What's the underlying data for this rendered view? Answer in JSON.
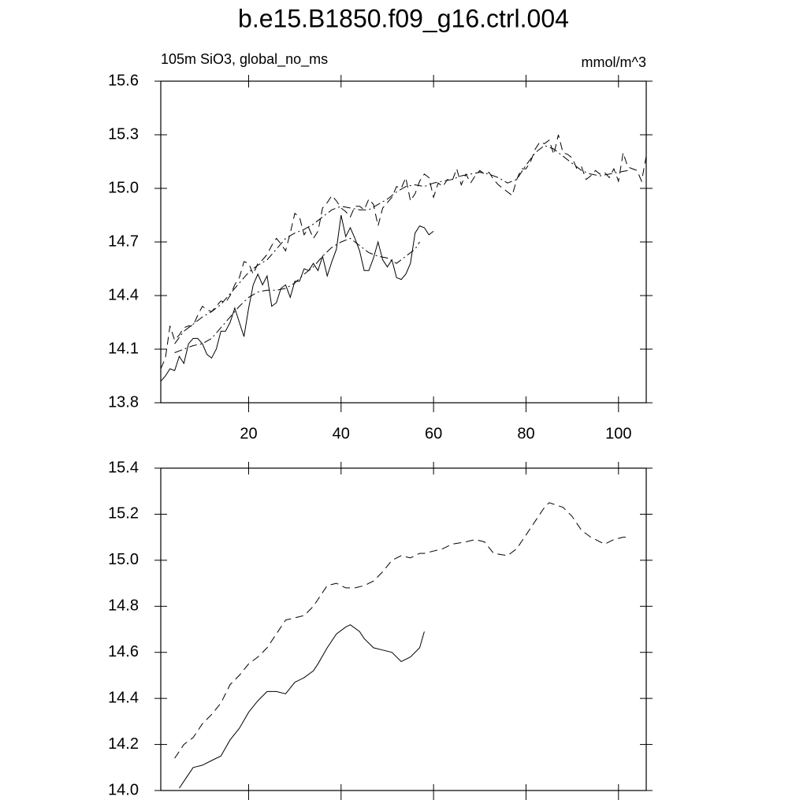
{
  "chart_data": [
    {
      "type": "line",
      "title": "b.e15.B1850.f09_g16.ctrl.004",
      "subtitle": "105m SiO3, global_no_ms",
      "units": "mmol/m^3",
      "xlim": [
        1,
        106
      ],
      "xticks": [
        20,
        40,
        60,
        80,
        100
      ],
      "ylim": [
        13.8,
        15.6
      ],
      "yticks": [
        15.6,
        15.3,
        {
          "value": 15,
          "label": "15.0"
        },
        14.7,
        14.4,
        14.1,
        13.8
      ],
      "series": [
        {
          "color": "#000000",
          "dash": "solid",
          "x": [
            1,
            2,
            3,
            4,
            5,
            6,
            7,
            8,
            9,
            10,
            11,
            12,
            13,
            14,
            15,
            16,
            17,
            18,
            19,
            20,
            21,
            22,
            23,
            24,
            25,
            26,
            27,
            28,
            29,
            30,
            31,
            32,
            33,
            34,
            35,
            36,
            37,
            38,
            39,
            40,
            41,
            42,
            43,
            44,
            45,
            46,
            47,
            48,
            49,
            50,
            51,
            52,
            53,
            54,
            55,
            56,
            57,
            58,
            59,
            60
          ],
          "values": [
            13.92,
            13.95,
            13.99,
            13.98,
            14.06,
            14.02,
            14.13,
            14.16,
            14.16,
            14.13,
            14.07,
            14.05,
            14.1,
            14.2,
            14.2,
            14.25,
            14.33,
            14.25,
            14.17,
            14.33,
            14.46,
            14.52,
            14.46,
            14.51,
            14.34,
            14.36,
            14.44,
            14.46,
            14.39,
            14.48,
            14.48,
            14.55,
            14.54,
            14.58,
            14.54,
            14.62,
            14.51,
            14.59,
            14.66,
            14.85,
            14.73,
            14.78,
            14.72,
            14.65,
            14.54,
            14.54,
            14.61,
            14.7,
            14.6,
            14.56,
            14.6,
            14.5,
            14.49,
            14.52,
            14.58,
            14.75,
            14.79,
            14.78,
            14.74,
            14.76
          ]
        },
        {
          "color": "#000000",
          "dash": "dashdot",
          "x": [
            4,
            6,
            8,
            10,
            12,
            14,
            16,
            18,
            20,
            22,
            24,
            26,
            28,
            30,
            32,
            34,
            36,
            38,
            40,
            42,
            44,
            46,
            48,
            50,
            52,
            54,
            56,
            57
          ],
          "values": [
            14.08,
            14.1,
            14.12,
            14.13,
            14.16,
            14.22,
            14.28,
            14.34,
            14.39,
            14.42,
            14.43,
            14.43,
            14.44,
            14.47,
            14.52,
            14.56,
            14.62,
            14.67,
            14.7,
            14.72,
            14.68,
            14.64,
            14.62,
            14.61,
            14.58,
            14.62,
            14.66,
            14.7
          ]
        },
        {
          "color": "#000000",
          "dash": "dashed",
          "x": [
            1,
            2,
            3,
            4,
            5,
            6,
            7,
            8,
            9,
            10,
            11,
            12,
            13,
            14,
            15,
            16,
            17,
            18,
            19,
            20,
            21,
            22,
            23,
            24,
            25,
            26,
            27,
            28,
            29,
            30,
            31,
            32,
            33,
            34,
            35,
            36,
            37,
            38,
            39,
            40,
            41,
            42,
            43,
            44,
            45,
            46,
            47,
            48,
            49,
            50,
            51,
            52,
            53,
            54,
            55,
            56,
            57,
            58,
            59,
            60,
            61,
            62,
            63,
            64,
            65,
            66,
            67,
            68,
            69,
            70,
            71,
            72,
            73,
            74,
            75,
            76,
            77,
            78,
            79,
            80,
            81,
            82,
            83,
            84,
            85,
            86,
            87,
            88,
            89,
            90,
            91,
            92,
            93,
            94,
            95,
            96,
            97,
            98,
            99,
            100,
            101,
            102,
            103,
            104,
            105,
            106
          ],
          "values": [
            13.99,
            14.05,
            14.23,
            14.15,
            14.18,
            14.22,
            14.23,
            14.23,
            14.29,
            14.34,
            14.32,
            14.31,
            14.34,
            14.37,
            14.36,
            14.4,
            14.46,
            14.5,
            14.59,
            14.58,
            14.52,
            14.58,
            14.6,
            14.63,
            14.68,
            14.72,
            14.69,
            14.65,
            14.75,
            14.86,
            14.84,
            14.74,
            14.78,
            14.72,
            14.76,
            14.89,
            14.92,
            14.96,
            14.93,
            14.89,
            14.87,
            14.84,
            14.9,
            14.9,
            14.88,
            14.94,
            14.91,
            14.79,
            14.89,
            14.92,
            14.95,
            15.01,
            15.0,
            15.06,
            14.93,
            14.97,
            15.04,
            15.08,
            15.06,
            14.95,
            15.03,
            15.01,
            15.05,
            15.04,
            15.11,
            15.02,
            15.08,
            15.03,
            15.07,
            15.1,
            15.08,
            15.09,
            15.05,
            15.02,
            15.0,
            14.98,
            14.96,
            15.05,
            15.11,
            15.11,
            15.15,
            15.22,
            15.26,
            15.25,
            15.27,
            15.19,
            15.3,
            15.2,
            15.19,
            15.17,
            15.11,
            15.12,
            15.05,
            15.07,
            15.1,
            15.08,
            15.09,
            15.06,
            15.11,
            15.04,
            15.2,
            15.12,
            15.11,
            15.1,
            15.04,
            15.18
          ]
        },
        {
          "color": "#000000",
          "dash": "dashdot",
          "x": [
            4,
            6,
            8,
            10,
            12,
            14,
            16,
            18,
            20,
            22,
            24,
            26,
            28,
            30,
            32,
            34,
            36,
            38,
            40,
            42,
            44,
            46,
            48,
            50,
            52,
            54,
            56,
            58,
            60,
            62,
            64,
            66,
            68,
            70,
            72,
            74,
            76,
            78,
            80,
            82,
            84,
            86,
            88,
            90,
            92,
            94,
            96,
            98,
            100,
            102
          ],
          "values": [
            14.13,
            14.2,
            14.24,
            14.28,
            14.31,
            14.35,
            14.41,
            14.47,
            14.53,
            14.57,
            14.6,
            14.66,
            14.72,
            14.75,
            14.77,
            14.8,
            14.84,
            14.88,
            14.9,
            14.89,
            14.88,
            14.88,
            14.91,
            14.94,
            14.98,
            15.01,
            15.02,
            15.01,
            15.03,
            15.04,
            15.05,
            15.07,
            15.08,
            15.09,
            15.08,
            15.06,
            15.03,
            15.05,
            15.13,
            15.2,
            15.24,
            15.22,
            15.18,
            15.14,
            15.1,
            15.08,
            15.07,
            15.08,
            15.09,
            15.1
          ]
        }
      ]
    },
    {
      "type": "line",
      "xlim": [
        1,
        106
      ],
      "xticks": [
        20,
        40,
        60,
        80,
        100
      ],
      "ylim": [
        14.0,
        15.4
      ],
      "yticks": [
        15.4,
        15.2,
        {
          "value": 15,
          "label": "15.0"
        },
        14.8,
        14.6,
        14.4,
        14.2,
        {
          "value": 14,
          "label": "14.0"
        }
      ],
      "series": [
        {
          "color": "#000000",
          "dash": "dashed",
          "x": [
            4,
            6,
            8,
            10,
            12,
            14,
            16,
            18,
            20,
            22,
            24,
            26,
            28,
            30,
            32,
            34,
            35,
            37,
            39,
            41,
            43,
            45,
            47,
            49,
            51,
            53,
            55,
            57,
            58,
            60,
            62,
            64,
            67,
            69,
            71,
            73,
            76,
            78,
            80,
            82,
            84,
            85,
            88,
            90,
            92,
            94,
            97,
            99,
            101,
            102
          ],
          "values": [
            14.14,
            14.2,
            14.23,
            14.29,
            14.33,
            14.38,
            14.46,
            14.5,
            14.55,
            14.58,
            14.62,
            14.68,
            14.74,
            14.75,
            14.76,
            14.8,
            14.83,
            14.89,
            14.9,
            14.88,
            14.88,
            14.89,
            14.91,
            14.95,
            15.0,
            15.02,
            15.01,
            15.03,
            15.03,
            15.04,
            15.05,
            15.07,
            15.08,
            15.09,
            15.08,
            15.03,
            15.02,
            15.05,
            15.11,
            15.17,
            15.23,
            15.25,
            15.23,
            15.19,
            15.13,
            15.1,
            15.07,
            15.09,
            15.1,
            15.1
          ]
        },
        {
          "color": "#000000",
          "dash": "solid",
          "x": [
            5,
            6,
            8,
            10,
            12,
            14,
            16,
            18,
            20,
            22,
            24,
            26,
            28,
            30,
            32,
            34,
            35,
            37,
            39,
            41,
            42,
            44,
            45,
            47,
            49,
            51,
            53,
            55,
            57,
            58
          ],
          "values": [
            14.01,
            14.04,
            14.1,
            14.11,
            14.13,
            14.15,
            14.22,
            14.27,
            14.34,
            14.39,
            14.43,
            14.43,
            14.42,
            14.47,
            14.49,
            14.52,
            14.55,
            14.62,
            14.68,
            14.71,
            14.72,
            14.69,
            14.66,
            14.62,
            14.61,
            14.6,
            14.56,
            14.58,
            14.62,
            14.69
          ]
        }
      ]
    }
  ]
}
